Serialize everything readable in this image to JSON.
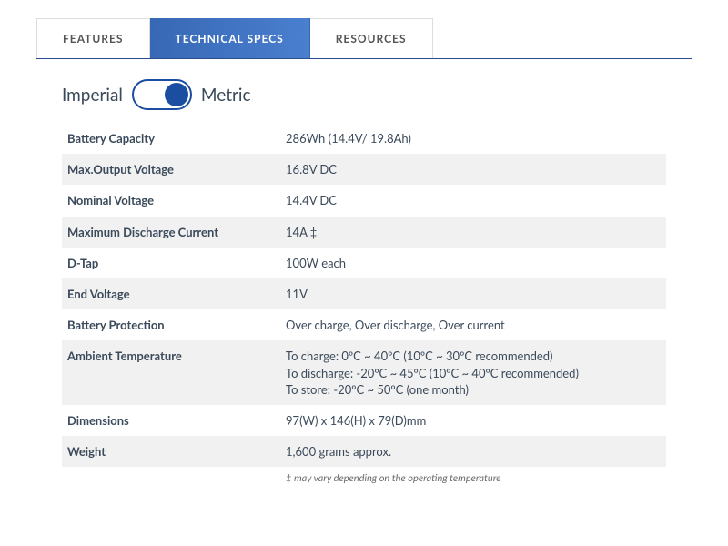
{
  "tabs": {
    "features": "FEATURES",
    "technical": "TECHNICAL SPECS",
    "resources": "RESOURCES"
  },
  "units": {
    "imperial": "Imperial",
    "metric": "Metric",
    "state": "metric"
  },
  "specs": [
    {
      "label": "Battery Capacity",
      "value": "286Wh (14.4V/ 19.8Ah)"
    },
    {
      "label": "Max.Output Voltage",
      "value": "16.8V DC"
    },
    {
      "label": "Nominal Voltage",
      "value": "14.4V DC"
    },
    {
      "label": "Maximum Discharge Current",
      "value": "14A ‡"
    },
    {
      "label": "D-Tap",
      "value": "100W each"
    },
    {
      "label": "End Voltage",
      "value": "11V"
    },
    {
      "label": "Battery Protection",
      "value": "Over charge, Over discharge, Over current"
    },
    {
      "label": "Ambient Temperature",
      "value": "To charge: 0ºC ~ 40ºC (10ºC ~ 30ºC recommended)\nTo discharge: -20ºC ~ 45ºC (10ºC ~ 40ºC recommended)\nTo store: -20ºC ~ 50ºC (one month)"
    },
    {
      "label": "Dimensions",
      "value": "97(W) x 146(H) x 79(D)mm"
    },
    {
      "label": "Weight",
      "value": "1,600 grams approx."
    }
  ],
  "footnote": "‡ may vary depending on the operating temperature",
  "colors": {
    "tab_gradient_start": "#3768b5",
    "tab_gradient_end": "#4a7fcf",
    "tab_underline": "#2a4d8f",
    "toggle_border": "#1b4ea1",
    "toggle_knob": "#1b4ea1",
    "row_alt_bg": "#f1f1f1",
    "text": "#3b4a5a"
  }
}
